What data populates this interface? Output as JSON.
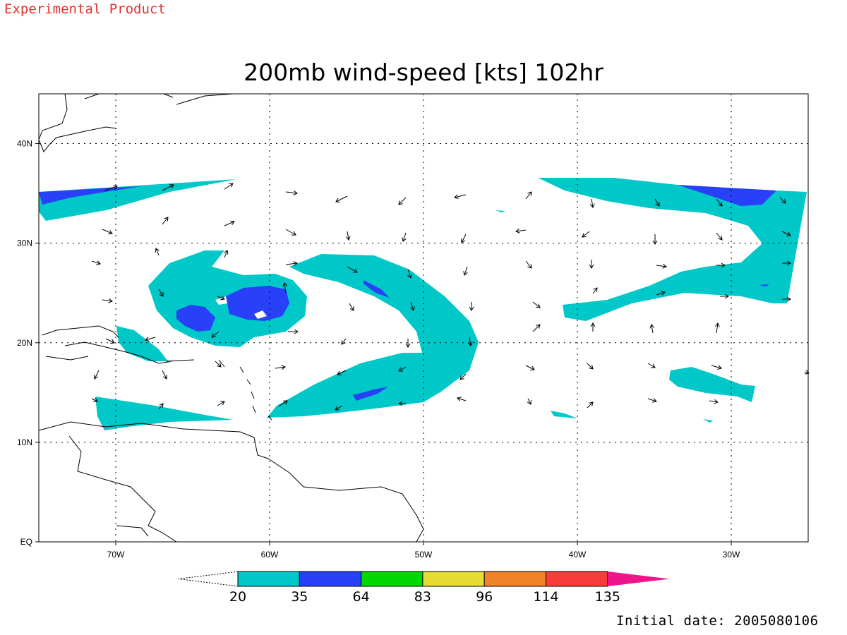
{
  "header": {
    "label": "Experimental Product"
  },
  "map": {
    "title": "200mb wind-speed [kts] 102hr",
    "lon_range": [
      -75,
      -25
    ],
    "lat_range": [
      0,
      45
    ],
    "lon_ticks": [
      {
        "value": -70,
        "label": "70W"
      },
      {
        "value": -60,
        "label": "60W"
      },
      {
        "value": -50,
        "label": "50W"
      },
      {
        "value": -40,
        "label": "40W"
      },
      {
        "value": -30,
        "label": "30W"
      }
    ],
    "lat_ticks": [
      {
        "value": 0,
        "label": "EQ"
      },
      {
        "value": 10,
        "label": "10N"
      },
      {
        "value": 20,
        "label": "20N"
      },
      {
        "value": 30,
        "label": "30N"
      },
      {
        "value": 40,
        "label": "40N"
      }
    ],
    "grid": "dotted",
    "shading_colors": {
      "20-35": "#00c8c8",
      "35-64": "#2840f8"
    }
  },
  "colorbar": {
    "levels": [
      "20",
      "35",
      "64",
      "83",
      "96",
      "114",
      "135"
    ],
    "colors": [
      "#00c8c8",
      "#2840f8",
      "#00d800",
      "#e6dc32",
      "#f08228",
      "#f83c3c",
      "#f0148c"
    ]
  },
  "footer": {
    "initial_date": "Initial date: 2005080106"
  }
}
